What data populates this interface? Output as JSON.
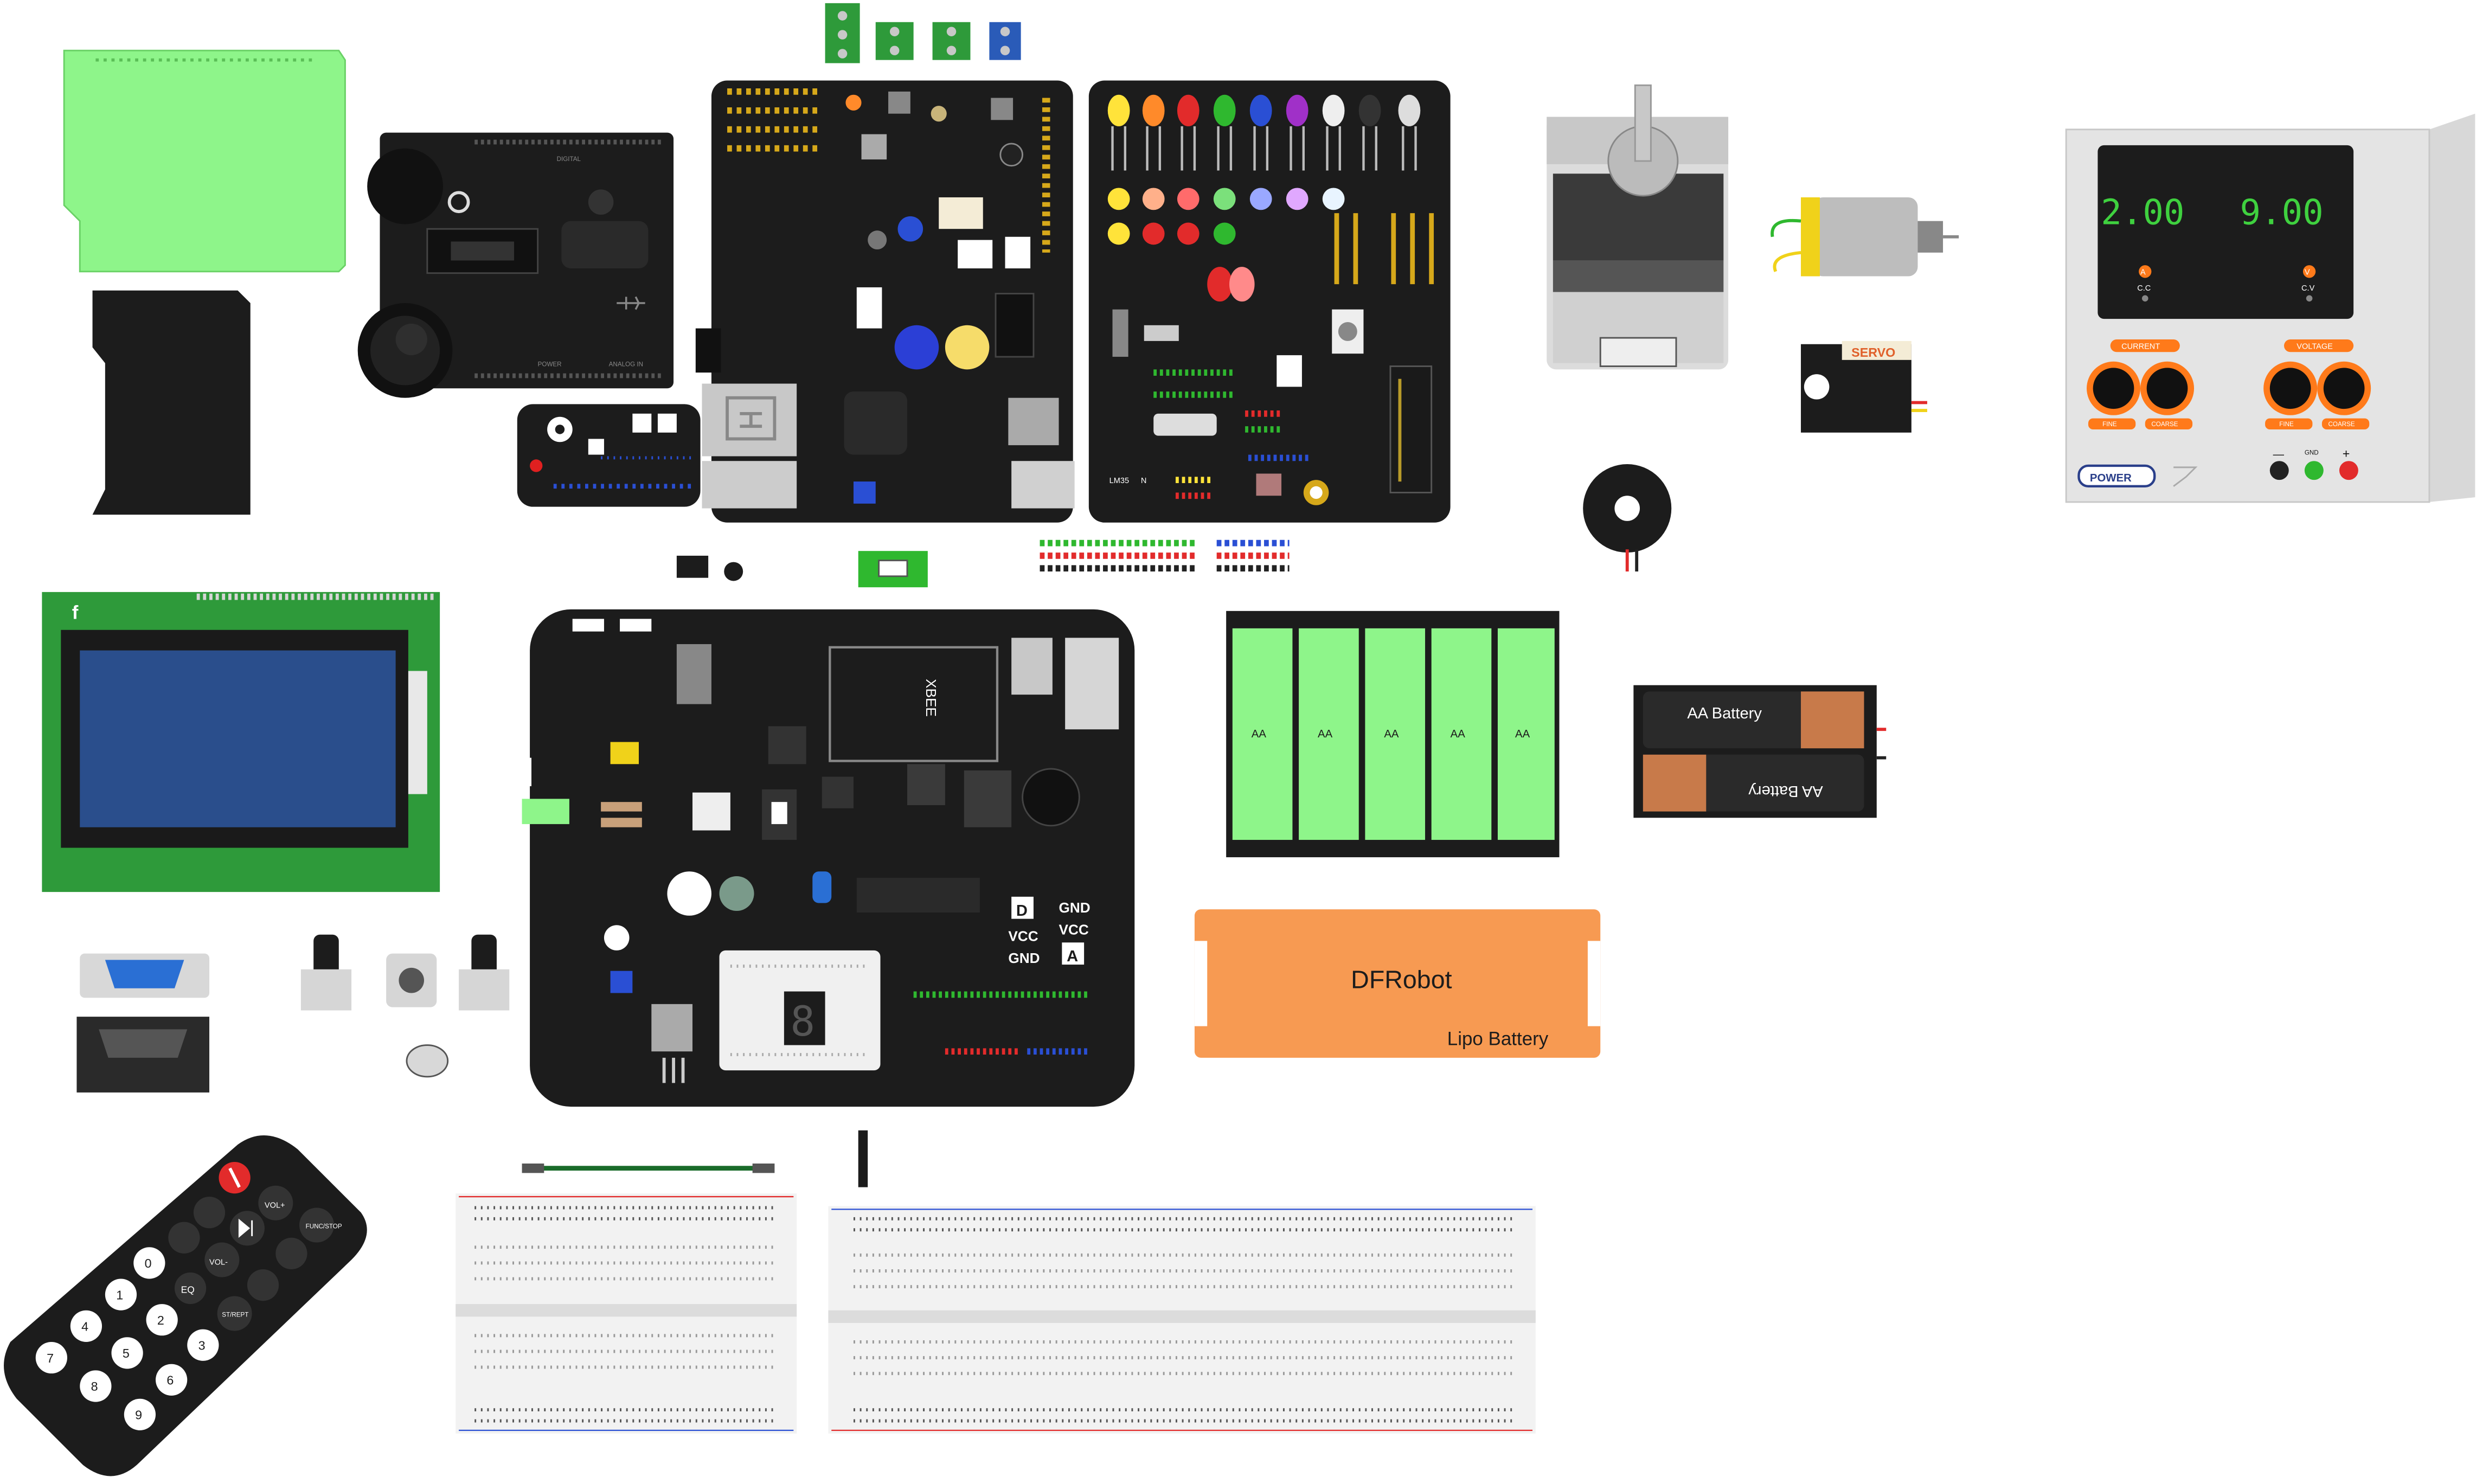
{
  "power_supply": {
    "current_display": "2.00",
    "voltage_display": "9.00",
    "current_indicator": "A",
    "voltage_indicator": "V",
    "cc_label": "C.C",
    "cv_label": "C.V",
    "current_label": "CURRENT",
    "voltage_label": "VOLTAGE",
    "fine_label": "FINE",
    "coarse_label": "COARSE",
    "power_label": "POWER",
    "minus_label": "—",
    "gnd_label": "GND",
    "plus_label": "+"
  },
  "servo": {
    "label": "SERVO"
  },
  "aa_holder_5": {
    "cell_label": "AA"
  },
  "aa_holder_2": {
    "battery_label": "AA Battery"
  },
  "lipo": {
    "brand": "DFRobot",
    "type": "Lipo Battery"
  },
  "io_board": {
    "xbee_label": "XBEE",
    "d_label": "D",
    "a_label": "A",
    "gnd_label": "GND",
    "vcc_label": "VCC",
    "seven_seg_digit": "8"
  },
  "sensor_panel": {
    "lm35_label": "LM35",
    "n_label": "N"
  },
  "shield": {
    "digital_label": "DIGITAL",
    "power_label": "POWER",
    "analog_label": "ANALOG IN"
  },
  "remote": {
    "vol_up": "VOL+",
    "func_stop": "FUNC/STOP",
    "vol_down": "VOL-",
    "eq": "EQ",
    "st_rept": "ST/REPT",
    "digits": [
      "0",
      "1",
      "2",
      "3",
      "4",
      "5",
      "6",
      "7",
      "8",
      "9"
    ]
  },
  "colors": {
    "board_black": "#1c1c1c",
    "pcb_green": "#8ef58a",
    "lipo_orange": "#f79a52",
    "power_supply_body": "#d9d9d9",
    "display_green": "#3fd13f",
    "knob_orange": "#ff7a1a",
    "breadboard": "#f2f2f2"
  },
  "icons": [
    "gear-icon",
    "usb-icon",
    "network-port-icon",
    "power-button-icon",
    "play-pause-icon"
  ]
}
